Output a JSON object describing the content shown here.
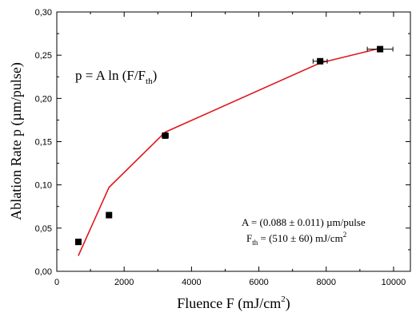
{
  "chart_data": {
    "type": "scatter",
    "xlabel": "Fluence F (mJ/cm",
    "xlabel_sup": "2",
    "xlabel_end": ")",
    "ylabel": "Ablation Rate p (µm/pulse)",
    "xlim": [
      0,
      10500
    ],
    "ylim": [
      0,
      0.3
    ],
    "x_ticks": [
      0,
      2000,
      4000,
      6000,
      8000,
      10000
    ],
    "x_tick_labels": [
      "0",
      "2000",
      "4000",
      "6000",
      "8000",
      "10000"
    ],
    "y_ticks": [
      0.0,
      0.05,
      0.1,
      0.15,
      0.2,
      0.25,
      0.3
    ],
    "y_tick_labels": [
      "0,00",
      "0,05",
      "0,10",
      "0,15",
      "0,20",
      "0,25",
      "0,30"
    ],
    "grid": false,
    "series": [
      {
        "type": "scatter",
        "color": "#000000",
        "x": [
          640,
          1550,
          3220,
          7820,
          9600
        ],
        "y": [
          0.034,
          0.065,
          0.157,
          0.243,
          0.257
        ],
        "x_err": [
          0,
          0,
          90,
          210,
          380
        ],
        "y_err": [
          0.003,
          0.003,
          0.003,
          0.003,
          0.003
        ]
      },
      {
        "type": "line",
        "color": "#e0191e",
        "x": [
          640,
          1550,
          3220,
          7820,
          9600
        ],
        "y": [
          0.018,
          0.097,
          0.161,
          0.241,
          0.258
        ]
      }
    ],
    "annotations": {
      "formula_main": "p = A ln (F/F",
      "formula_sub": "th",
      "formula_end": ")",
      "A_line": "A = (0.088 ± 0.011) µm/pulse",
      "F_prefix": "F",
      "F_sub": "th",
      "F_rest": " = (510 ± 60) mJ/cm",
      "F_sup": "2"
    }
  }
}
